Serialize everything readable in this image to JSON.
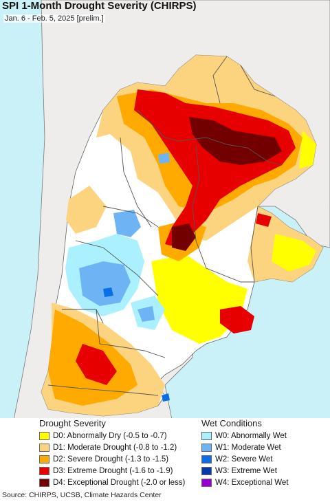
{
  "title": "SPI 1-Month Drought Severity (CHIRPS)",
  "subtitle": "Jan. 6 - Feb. 5, 2025 [prelim.]",
  "colors": {
    "ocean": "#c9f1f7",
    "land_outside": "#efecec",
    "D0": "#ffff00",
    "D1": "#fcd37f",
    "D2": "#ffaa00",
    "D3": "#e60000",
    "D4": "#730000",
    "W0": "#aaf0ff",
    "W1": "#6eb4f5",
    "W2": "#0a6fe6",
    "W3": "#0538a8",
    "W4": "#9400d3"
  },
  "legend": {
    "drought_heading": "Drought Severity",
    "wet_heading": "Wet Conditions",
    "drought_items": [
      {
        "label": "D0: Abnormally Dry (-0.5 to -0.7)",
        "color": "#ffff00"
      },
      {
        "label": "D1: Moderate Drought (-0.8 to -1.2)",
        "color": "#fcd37f"
      },
      {
        "label": "D2: Severe Drought (-1.3 to -1.5)",
        "color": "#ffaa00"
      },
      {
        "label": "D3: Extreme Drought (-1.6 to -1.9)",
        "color": "#e60000"
      },
      {
        "label": "D4: Exceptional Drought (-2.0 or less)",
        "color": "#730000"
      }
    ],
    "wet_items": [
      {
        "label": "W0: Abnormally Wet",
        "color": "#aaf0ff"
      },
      {
        "label": "W1: Moderate Wet",
        "color": "#6eb4f5"
      },
      {
        "label": "W2: Severe Wet",
        "color": "#0a6fe6"
      },
      {
        "label": "W3: Extreme Wet",
        "color": "#0538a8"
      },
      {
        "label": "W4: Exceptional Wet",
        "color": "#9400d3"
      }
    ]
  },
  "source": "Source: CHIRPS, UCSB, Climate Hazards Center"
}
